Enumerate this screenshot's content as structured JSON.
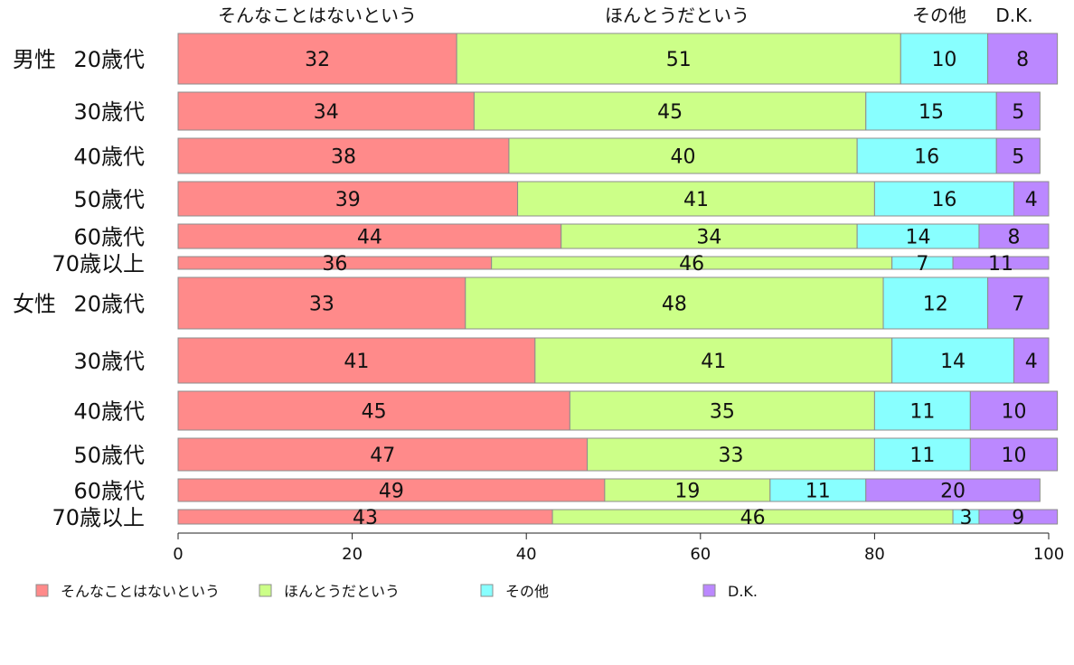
{
  "chart_data": {
    "type": "bar",
    "orientation": "horizontal",
    "stacked": true,
    "xlim": [
      0,
      100
    ],
    "xticks": [
      0,
      20,
      40,
      60,
      80,
      100
    ],
    "legend_position": "bottom",
    "grid": false,
    "series": [
      {
        "name": "そんなことはないという",
        "color": "#ff8a8a"
      },
      {
        "name": "ほんとうだという",
        "color": "#ccff88"
      },
      {
        "name": "その他",
        "color": "#88ffff"
      },
      {
        "name": "D.K.",
        "color": "#bb88ff"
      }
    ],
    "column_headers": [
      "そんなことはないという",
      "ほんとうだという",
      "その他",
      "D.K."
    ],
    "groups": [
      {
        "label": "男性",
        "rows": [
          {
            "category": "20歳代",
            "values": [
              32,
              51,
              10,
              8
            ]
          },
          {
            "category": "30歳代",
            "values": [
              34,
              45,
              15,
              5
            ]
          },
          {
            "category": "40歳代",
            "values": [
              38,
              40,
              16,
              5
            ]
          },
          {
            "category": "50歳代",
            "values": [
              39,
              41,
              16,
              4
            ]
          },
          {
            "category": "60歳代",
            "values": [
              44,
              34,
              14,
              8
            ]
          },
          {
            "category": "70歳以上",
            "values": [
              36,
              46,
              7,
              11
            ]
          }
        ]
      },
      {
        "label": "女性",
        "rows": [
          {
            "category": "20歳代",
            "values": [
              33,
              48,
              12,
              7
            ]
          },
          {
            "category": "30歳代",
            "values": [
              41,
              41,
              14,
              4
            ]
          },
          {
            "category": "40歳代",
            "values": [
              45,
              35,
              11,
              10
            ]
          },
          {
            "category": "50歳代",
            "values": [
              47,
              33,
              11,
              10
            ]
          },
          {
            "category": "60歳代",
            "values": [
              49,
              19,
              11,
              20
            ]
          },
          {
            "category": "70歳以上",
            "values": [
              43,
              46,
              3,
              9
            ]
          }
        ]
      }
    ]
  }
}
